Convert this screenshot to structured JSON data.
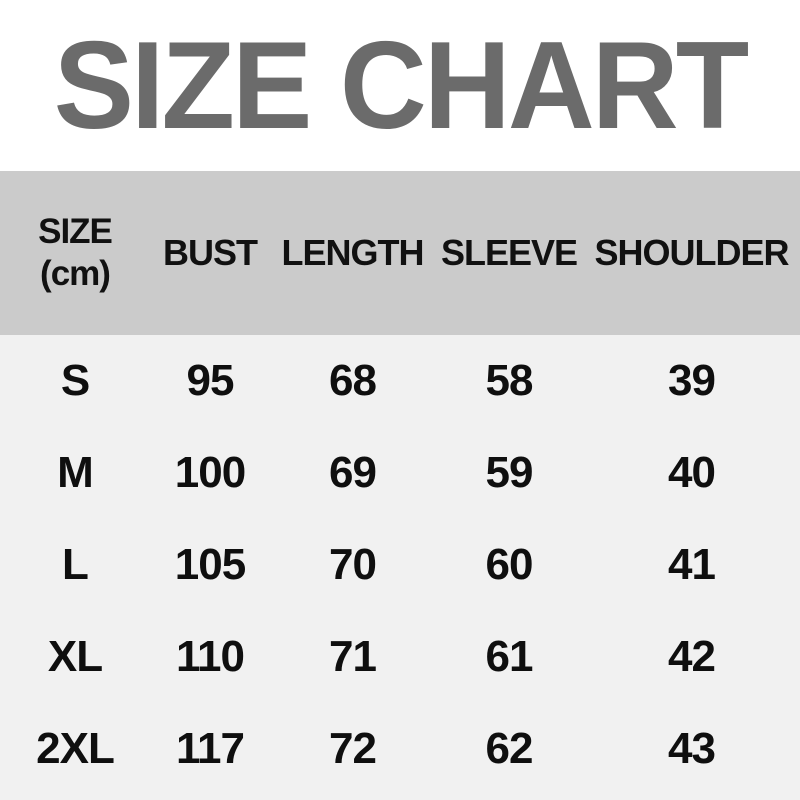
{
  "title": "SIZE CHART",
  "header": {
    "size_label": "SIZE",
    "unit_label": "(cm)",
    "columns": [
      "BUST",
      "LENGTH",
      "SLEEVE",
      "SHOULDER"
    ]
  },
  "colors": {
    "title_gray": "#6b6b6b",
    "header_bg": "#cbcbcb",
    "body_bg": "#f1f1f1",
    "text_black": "#0f0f0f",
    "page_bg": "#ffffff"
  },
  "chart_data": {
    "type": "table",
    "title": "SIZE CHART",
    "unit": "cm",
    "columns": [
      "SIZE (cm)",
      "BUST",
      "LENGTH",
      "SLEEVE",
      "SHOULDER"
    ],
    "rows": [
      [
        "S",
        95,
        68,
        58,
        39
      ],
      [
        "M",
        100,
        69,
        59,
        40
      ],
      [
        "L",
        105,
        70,
        60,
        41
      ],
      [
        "XL",
        110,
        71,
        61,
        42
      ],
      [
        "2XL",
        117,
        72,
        62,
        43
      ]
    ]
  }
}
